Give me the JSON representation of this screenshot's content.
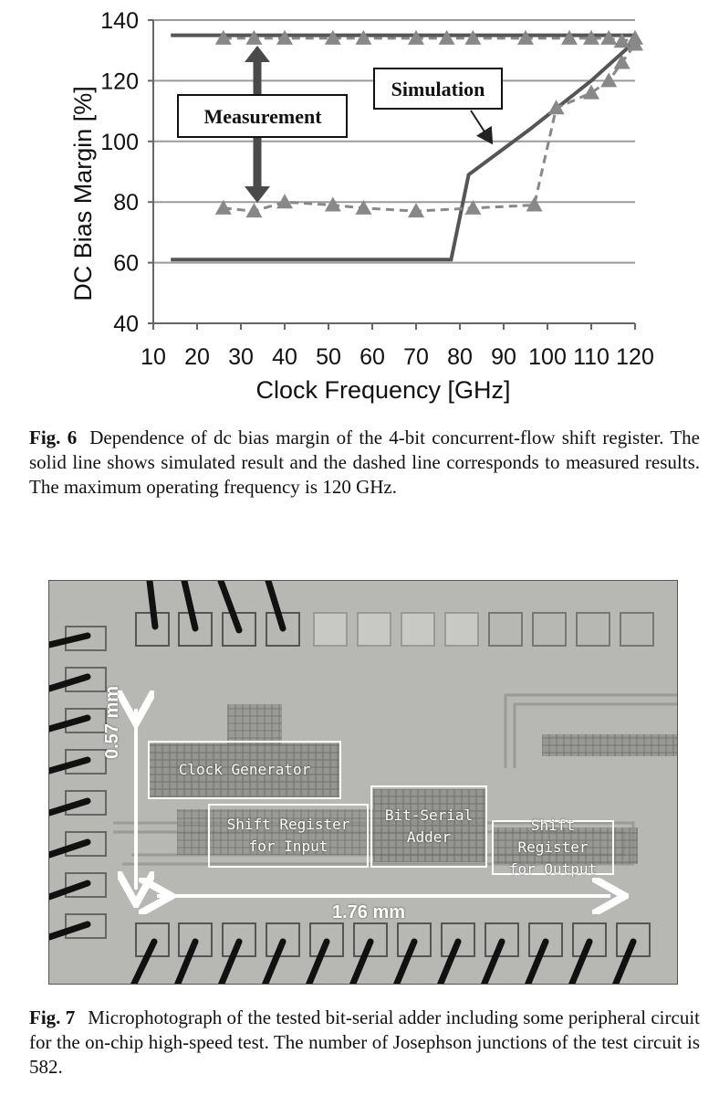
{
  "fig6": {
    "caption_number": "Fig. 6",
    "caption_text": "Dependence of dc bias margin of the 4-bit concurrent-flow shift register. The solid line shows simulated result and the dashed line corresponds to measured results. The maximum operating frequency is 120 GHz.",
    "chart_data": {
      "type": "line",
      "xlabel": "Clock Frequency [GHz]",
      "ylabel": "DC Bias Margin [%]",
      "xlim": [
        10,
        120
      ],
      "ylim": [
        40,
        140
      ],
      "x_ticks": [
        "10",
        "20",
        "30",
        "40",
        "50",
        "60",
        "70",
        "80",
        "90",
        "100",
        "110",
        "120"
      ],
      "y_ticks": [
        "40",
        "60",
        "80",
        "100",
        "120",
        "140"
      ],
      "grid": "horizontal",
      "series": [
        {
          "style": "solid",
          "color": "#555555",
          "x": [
            14,
            120
          ],
          "y": [
            135,
            135
          ]
        },
        {
          "style": "solid",
          "color": "#555555",
          "x": [
            14,
            78,
            82,
            96,
            110,
            120
          ],
          "y": [
            61,
            61,
            89,
            104,
            120,
            133
          ]
        },
        {
          "style": "dashed-triangle",
          "color": "#888888",
          "x": [
            26,
            33,
            40,
            51,
            58,
            70,
            77,
            83,
            95,
            105,
            110,
            114,
            117,
            120
          ],
          "y": [
            134,
            134,
            134,
            134,
            134,
            134,
            134,
            134,
            134,
            134,
            134,
            134,
            133,
            134
          ]
        },
        {
          "style": "dashed-triangle",
          "color": "#888888",
          "x": [
            26,
            33,
            40,
            51,
            58,
            70,
            83,
            97,
            102,
            110,
            114,
            117,
            120
          ],
          "y": [
            78,
            77,
            80,
            79,
            78,
            77,
            78,
            79,
            111,
            116,
            120,
            126,
            132
          ]
        }
      ],
      "annotations": [
        {
          "text": "Simulation"
        },
        {
          "text": "Measurement"
        }
      ]
    }
  },
  "fig7": {
    "caption_number": "Fig. 7",
    "caption_text": "Microphotograph of the tested bit-serial adder including some peripheral circuit for the on-chip high-speed test. The number of Josephson junctions of the test circuit is 582.",
    "blocks": {
      "clock_generator": "Clock Generator",
      "shift_register_input_1": "Shift Register",
      "shift_register_input_2": "for Input",
      "bit_serial_adder_1": "Bit-Serial",
      "bit_serial_adder_2": "Adder",
      "shift_register_output_1": "Shift Register",
      "shift_register_output_2": "for Output"
    },
    "dimensions": {
      "height": "0.57 mm",
      "width": "1.76 mm"
    }
  }
}
